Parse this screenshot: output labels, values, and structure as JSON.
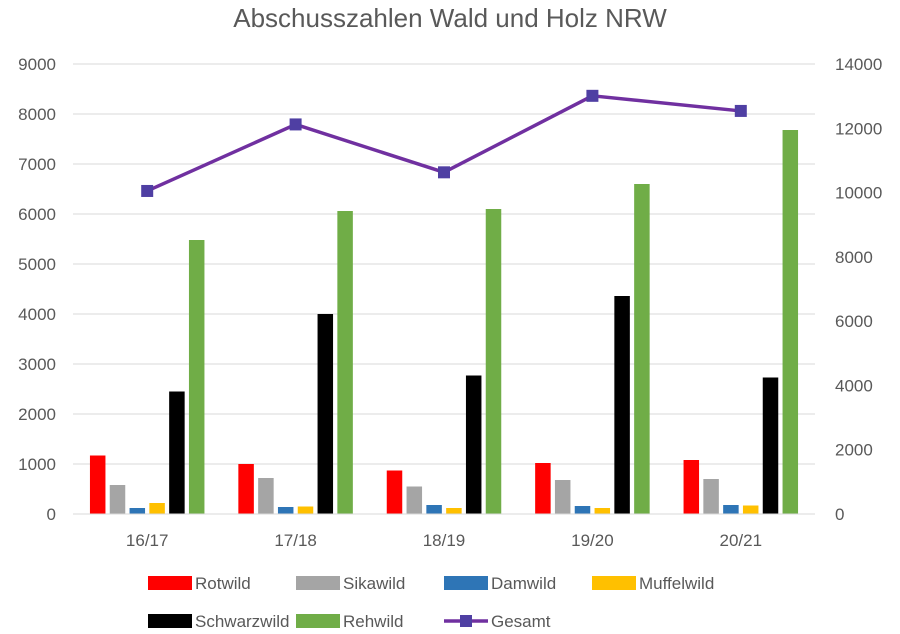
{
  "chart_data": {
    "type": "bar",
    "title": "Abschusszahlen Wald und Holz NRW",
    "categories": [
      "16/17",
      "17/18",
      "18/19",
      "19/20",
      "20/21"
    ],
    "y_left": {
      "ticks": [
        "0",
        "1000",
        "2000",
        "3000",
        "4000",
        "5000",
        "6000",
        "7000",
        "8000",
        "9000"
      ],
      "ylim": [
        0,
        9000
      ]
    },
    "y_right": {
      "ticks": [
        "0",
        "2000",
        "4000",
        "6000",
        "8000",
        "10000",
        "12000",
        "14000"
      ],
      "ylim": [
        0,
        14000
      ]
    },
    "grid": "horizontal",
    "legend_position": "bottom",
    "series": [
      {
        "name": "Rotwild",
        "kind": "bar",
        "axis": "left",
        "color": "#FF0000",
        "values": [
          1170,
          1000,
          870,
          1020,
          1080
        ]
      },
      {
        "name": "Sikawild",
        "kind": "bar",
        "axis": "left",
        "color": "#A5A5A5",
        "values": [
          580,
          720,
          550,
          680,
          700
        ]
      },
      {
        "name": "Damwild",
        "kind": "bar",
        "axis": "left",
        "color": "#2E75B6",
        "values": [
          120,
          140,
          180,
          160,
          180
        ]
      },
      {
        "name": "Muffelwild",
        "kind": "bar",
        "axis": "left",
        "color": "#FFC000",
        "values": [
          220,
          150,
          120,
          120,
          170
        ]
      },
      {
        "name": "Schwarzwild",
        "kind": "bar",
        "axis": "left",
        "color": "#000000",
        "values": [
          2450,
          4000,
          2770,
          4360,
          2730
        ]
      },
      {
        "name": "Rehwild",
        "kind": "bar",
        "axis": "left",
        "color": "#70AD47",
        "values": [
          5480,
          6060,
          6100,
          6600,
          7680
        ]
      },
      {
        "name": "Gesamt",
        "kind": "line",
        "axis": "right",
        "color": "#7030A0",
        "marker_color": "#4F3FA3",
        "values": [
          10050,
          12120,
          10630,
          13010,
          12540
        ]
      }
    ]
  }
}
